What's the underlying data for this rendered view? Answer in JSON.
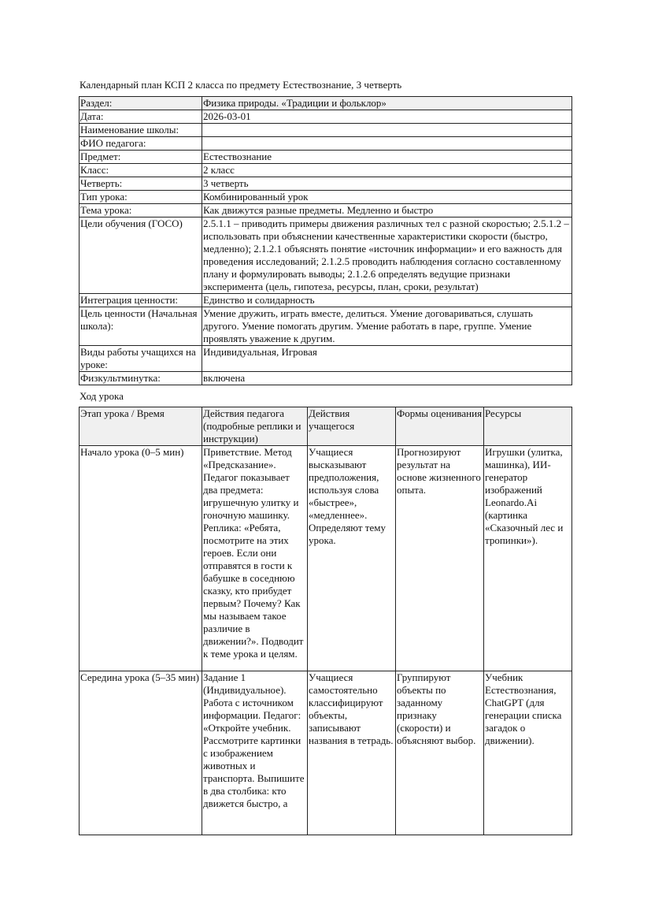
{
  "title": "Календарный план КСП 2 класса по предмету Естествознание, 3 четверть",
  "info": [
    {
      "label": "Раздел:",
      "value": "Физика природы. «Традиции и фольклор»"
    },
    {
      "label": "Дата:",
      "value": "2026-03-01"
    },
    {
      "label": "Наименование школы:",
      "value": ""
    },
    {
      "label": "ФИО педагога:",
      "value": ""
    },
    {
      "label": "Предмет:",
      "value": "Естествознание"
    },
    {
      "label": "Класс:",
      "value": "2 класс"
    },
    {
      "label": "Четверть:",
      "value": "3 четверть"
    },
    {
      "label": "Тип урока:",
      "value": "Комбинированный урок"
    },
    {
      "label": "Тема урока:",
      "value": "Как движутся разные предметы. Медленно и быстро"
    },
    {
      "label": "Цели обучения (ГОСО)",
      "value": "2.5.1.1 – приводить примеры движения различных тел с разной скоростью; 2.5.1.2 – использовать при объяснении качественные характеристики скорости (быстро, медленно); 2.1.2.1 объяснять понятие «источник информации» и его важность для проведения исследований; 2.1.2.5 проводить наблюдения согласно составленному плану и формулировать выводы; 2.1.2.6 определять ведущие признаки эксперимента (цель, гипотеза, ресурсы, план, сроки, результат)"
    },
    {
      "label": "Интеграция ценности:",
      "value": "Единство и солидарность"
    },
    {
      "label": "Цель ценности (Начальная школа):",
      "value": "Умение дружить, играть вместе, делиться. Умение договариваться, слушать другого. Умение помогать другим. Умение работать в паре, группе. Умение проявлять уважение к другим."
    },
    {
      "label": "Виды работы учащихся на уроке:",
      "value": "Индивидуальная, Игровая"
    },
    {
      "label": "Физкультминутка:",
      "value": "включена"
    }
  ],
  "lesson_heading": "Ход урока",
  "lesson": {
    "headers": [
      "Этап урока / Время",
      "Действия педагога (подробные реплики и инструкции)",
      "Действия учащегося",
      "Формы оценивания",
      "Ресурсы"
    ],
    "rows": [
      [
        "Начало урока (0–5 мин)",
        "Приветствие. Метод «Предсказание». Педагог показывает два предмета: игрушечную улитку и гоночную машинку. Реплика: «Ребята, посмотрите на этих героев. Если они отправятся в гости к бабушке в соседнюю сказку, кто прибудет первым? Почему? Как мы называем такое различие в движении?». Подводит к теме урока и целям.",
        "Учащиеся высказывают предположения, используя слова «быстрее», «медленнее». Определяют тему урока.",
        "Прогнозируют результат на основе жизненного опыта.",
        "Игрушки (улитка, машинка), ИИ-генератор изображений Leonardo.Ai (картинка «Сказочный лес и тропинки»)."
      ],
      [
        "Середина урока (5–35 мин)",
        "Задание 1 (Индивидуальное). Работа с источником информации. Педагог: «Откройте учебник. Рассмотрите картинки с изображением животных и транспорта. Выпишите в два столбика: кто движется быстро, а",
        "Учащиеся самостоятельно классифицируют объекты, записывают названия в тетрадь.",
        "Группируют объекты по заданному признаку (скорости) и объясняют выбор.",
        "Учебник Естествознания, ChatGPT (для генерации списка загадок о движении)."
      ]
    ]
  }
}
